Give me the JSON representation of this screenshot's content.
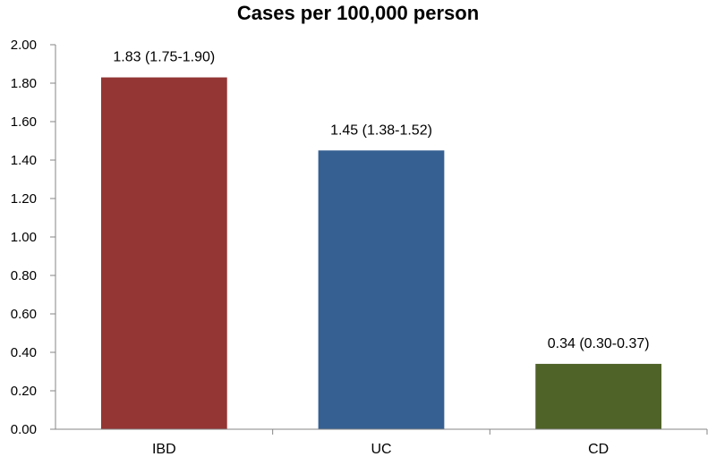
{
  "chart_data": {
    "type": "bar",
    "title": "Cases per 100,000 person",
    "xlabel": "",
    "ylabel": "",
    "categories": [
      "IBD",
      "UC",
      "CD"
    ],
    "values": [
      1.83,
      1.45,
      0.34
    ],
    "data_labels": [
      "1.83 (1.75-1.90)",
      "1.45 (1.38-1.52)",
      "0.34 (0.30-0.37)"
    ],
    "colors": [
      "#943634",
      "#366092",
      "#4f6228"
    ],
    "ylim": [
      0,
      2
    ],
    "yticks": [
      "0.00",
      "0.20",
      "0.40",
      "0.60",
      "0.80",
      "1.00",
      "1.20",
      "1.40",
      "1.60",
      "1.80",
      "2.00"
    ],
    "grid": false,
    "legend": "none"
  }
}
